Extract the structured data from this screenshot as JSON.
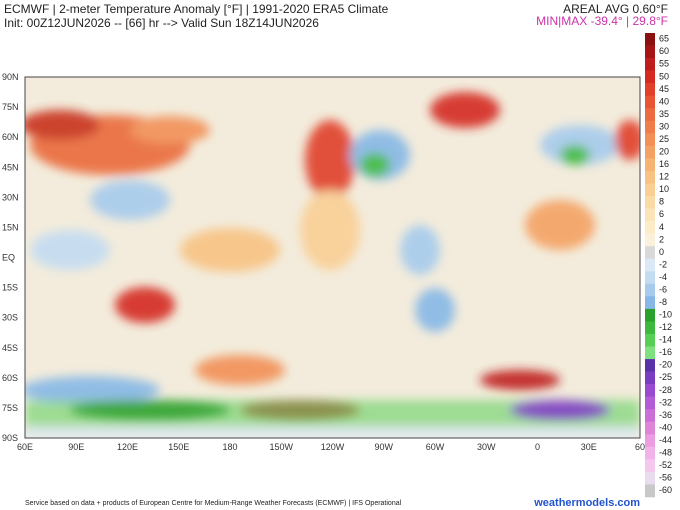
{
  "header": {
    "title": "ECMWF | 2-meter Temperature Anomaly [°F] | 1991-2020 ERA5 Climate",
    "subtitle": "Init: 00Z12JUN2026 -- [66] hr --> Valid Sun 18Z14JUN2026",
    "areal_avg": "AREAL AVG 0.60°F",
    "min_max": "MIN|MAX -39.4° | 29.8°F"
  },
  "map": {
    "lat_labels": [
      "90N",
      "75N",
      "60N",
      "45N",
      "30N",
      "15N",
      "EQ",
      "15S",
      "30S",
      "45S",
      "60S",
      "75S",
      "90S"
    ],
    "lon_labels": [
      "60E",
      "90E",
      "120E",
      "150E",
      "180",
      "150W",
      "120W",
      "90W",
      "60W",
      "30W",
      "0",
      "30E",
      "60"
    ]
  },
  "colorbar": {
    "labels": [
      "65",
      "60",
      "55",
      "50",
      "45",
      "40",
      "35",
      "30",
      "25",
      "20",
      "16",
      "12",
      "10",
      "8",
      "6",
      "4",
      "2",
      "0",
      "-2",
      "-4",
      "-6",
      "-8",
      "-10",
      "-12",
      "-14",
      "-16",
      "-20",
      "-25",
      "-28",
      "-32",
      "-36",
      "-40",
      "-44",
      "-48",
      "-52",
      "-56",
      "-60"
    ],
    "colors": [
      "#8b1010",
      "#a51515",
      "#be1d1d",
      "#d42a22",
      "#e0402a",
      "#e85535",
      "#ec6a40",
      "#ef7d4a",
      "#f29056",
      "#f4a264",
      "#f6b372",
      "#f8c283",
      "#f9cf94",
      "#fadba6",
      "#fbe5b8",
      "#fcecc8",
      "#fbf1da",
      "#d9d9d9",
      "#dbe9f6",
      "#c3dcf2",
      "#a6cbed",
      "#86b7e6",
      "#2ca02c",
      "#3dba3d",
      "#57cf57",
      "#7fe07f",
      "#5a32a8",
      "#7a3cc0",
      "#9a4ad0",
      "#b45cd8",
      "#cc6ed8",
      "#e084d8",
      "#ec9ce0",
      "#f2b4e8",
      "#f4c8ee",
      "#e8dcee",
      "#c8c8c8"
    ]
  },
  "footer": {
    "credit": "Service based on data + products of European Centre for Medium-Range Weather Forecasts (ECMWF) | IFS Operational",
    "brand": "weathermodels.com"
  }
}
